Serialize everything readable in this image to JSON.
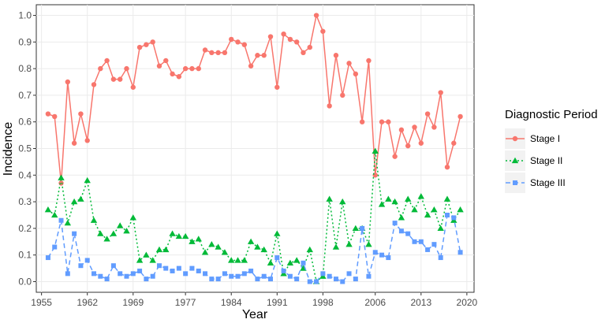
{
  "chart_data": {
    "type": "line",
    "xlabel": "Year",
    "ylabel": "Incidence",
    "xlim": [
      1954.2,
      2021.1
    ],
    "ylim": [
      -0.04,
      1.04
    ],
    "xticks": [
      1955,
      1962,
      1969,
      1977,
      1984,
      1991,
      1998,
      2006,
      2013,
      2020
    ],
    "xtick_labels": [
      "1955",
      "1962",
      "1969",
      "1977",
      "1984",
      "1991",
      "1998",
      "2006",
      "2013",
      "2020"
    ],
    "yticks": [
      0.0,
      0.1,
      0.2,
      0.3,
      0.4,
      0.5,
      0.6,
      0.7,
      0.8,
      0.9,
      1.0
    ],
    "ytick_labels": [
      "0.0",
      "0.1",
      "0.2",
      "0.3",
      "0.4",
      "0.5",
      "0.6",
      "0.7",
      "0.8",
      "0.9",
      "1.0"
    ],
    "grid": true,
    "legend": {
      "title": "Diagnostic  Period",
      "position": "right"
    },
    "x": [
      1956,
      1957,
      1958,
      1959,
      1960,
      1961,
      1962,
      1963,
      1964,
      1965,
      1966,
      1967,
      1968,
      1969,
      1970,
      1971,
      1972,
      1973,
      1974,
      1975,
      1976,
      1977,
      1978,
      1979,
      1980,
      1981,
      1982,
      1983,
      1984,
      1985,
      1986,
      1987,
      1988,
      1989,
      1990,
      1991,
      1992,
      1993,
      1994,
      1995,
      1996,
      1997,
      1998,
      1999,
      2000,
      2001,
      2002,
      2003,
      2004,
      2005,
      2006,
      2007,
      2008,
      2009,
      2010,
      2011,
      2012,
      2013,
      2014,
      2015,
      2016,
      2017,
      2018,
      2019
    ],
    "series": [
      {
        "name": "Stage I",
        "color": "#F8766D",
        "marker": "circle",
        "linestyle": "solid",
        "values": [
          0.63,
          0.62,
          0.37,
          0.75,
          0.52,
          0.63,
          0.53,
          0.74,
          0.8,
          0.83,
          0.76,
          0.76,
          0.8,
          0.73,
          0.88,
          0.89,
          0.9,
          0.81,
          0.83,
          0.78,
          0.77,
          0.8,
          0.8,
          0.8,
          0.87,
          0.86,
          0.86,
          0.86,
          0.91,
          0.9,
          0.89,
          0.81,
          0.85,
          0.85,
          0.92,
          0.73,
          0.93,
          0.91,
          0.9,
          0.86,
          0.88,
          1.0,
          0.94,
          0.66,
          0.85,
          0.7,
          0.82,
          0.78,
          0.6,
          0.83,
          0.4,
          0.6,
          0.6,
          0.47,
          0.57,
          0.51,
          0.58,
          0.52,
          0.63,
          0.58,
          0.71,
          0.43,
          0.52,
          0.62
        ]
      },
      {
        "name": "Stage II",
        "color": "#00BA38",
        "marker": "triangle",
        "linestyle": "dotted",
        "values": [
          0.27,
          0.25,
          0.39,
          0.22,
          0.3,
          0.31,
          0.38,
          0.23,
          0.18,
          0.16,
          0.18,
          0.21,
          0.19,
          0.24,
          0.08,
          0.1,
          0.08,
          0.12,
          0.12,
          0.18,
          0.17,
          0.17,
          0.15,
          0.16,
          0.11,
          0.14,
          0.13,
          0.11,
          0.08,
          0.08,
          0.08,
          0.15,
          0.13,
          0.12,
          0.07,
          0.18,
          0.03,
          0.07,
          0.08,
          0.05,
          0.12,
          0.0,
          0.02,
          0.31,
          0.13,
          0.3,
          0.14,
          0.2,
          0.2,
          0.14,
          0.49,
          0.29,
          0.31,
          0.3,
          0.24,
          0.31,
          0.27,
          0.32,
          0.25,
          0.27,
          0.2,
          0.31,
          0.23,
          0.27
        ]
      },
      {
        "name": "Stage III",
        "color": "#619CFF",
        "marker": "square",
        "linestyle": "dashed",
        "values": [
          0.09,
          0.13,
          0.23,
          0.03,
          0.18,
          0.06,
          0.08,
          0.03,
          0.02,
          0.01,
          0.06,
          0.03,
          0.02,
          0.03,
          0.04,
          0.01,
          0.02,
          0.06,
          0.05,
          0.04,
          0.05,
          0.03,
          0.05,
          0.04,
          0.03,
          0.01,
          0.01,
          0.03,
          0.02,
          0.02,
          0.03,
          0.04,
          0.01,
          0.02,
          0.01,
          0.09,
          0.04,
          0.02,
          0.01,
          0.07,
          0.0,
          0.0,
          0.03,
          0.02,
          0.01,
          0.0,
          0.03,
          0.01,
          0.2,
          0.02,
          0.11,
          0.1,
          0.09,
          0.22,
          0.19,
          0.18,
          0.15,
          0.15,
          0.12,
          0.14,
          0.09,
          0.25,
          0.24,
          0.11
        ]
      }
    ]
  }
}
